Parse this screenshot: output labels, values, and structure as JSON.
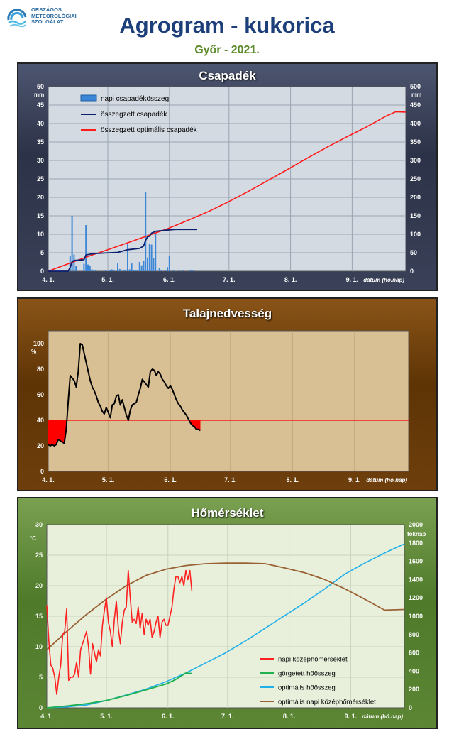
{
  "logo": {
    "line1": "ORSZÁGOS",
    "line2": "METEOROLÓGIAI",
    "line3": "SZOLGÁLAT"
  },
  "title": "Agrogram - kukorica",
  "subtitle": "Győr - 2021.",
  "colors": {
    "precip_bar": "#3b86d6",
    "cum_precip": "#0a1f6e",
    "opt_precip": "#ff1a1a",
    "soil_line": "#000000",
    "soil_threshold": "#ff0000",
    "temp_daily": "#ff2020",
    "rolling_heat": "#20b050",
    "opt_heat": "#22b0e8",
    "opt_temp": "#9a6234"
  },
  "chart_data": [
    {
      "type": "bar+line",
      "title": "Csapadék",
      "ylabel_left": "mm",
      "ylabel_right": "mm",
      "xlabel": "dátum (hó.nap)",
      "x_ticks": [
        "4. 1.",
        "5. 1.",
        "6. 1.",
        "7. 1.",
        "8. 1.",
        "9. 1."
      ],
      "x_tick_days": [
        0,
        30,
        61,
        91,
        122,
        153
      ],
      "x_range": [
        0,
        180
      ],
      "ylim_left": [
        0,
        50
      ],
      "yticks_left": [
        0,
        5,
        10,
        15,
        20,
        25,
        30,
        35,
        40,
        45,
        50
      ],
      "ylim_right": [
        0,
        500
      ],
      "yticks_right": [
        0,
        50,
        100,
        150,
        200,
        250,
        300,
        350,
        400,
        450,
        500
      ],
      "legend": [
        "napi csapadékösszeg",
        "összegzett csapadék",
        "összegzett optimális  csapadék"
      ],
      "daily_precip": {
        "day": [
          11,
          12,
          13,
          14,
          18,
          19,
          20,
          21,
          22,
          23,
          24,
          29,
          31,
          32,
          33,
          35,
          36,
          38,
          39,
          40,
          41,
          42,
          43,
          44,
          45,
          46,
          47,
          48,
          49,
          50,
          51,
          52,
          53,
          54,
          56,
          57,
          59,
          60,
          61,
          63,
          66,
          68,
          71,
          72,
          73
        ],
        "value": [
          4.2,
          15,
          4.5,
          1.5,
          2,
          12.5,
          1.8,
          1.5,
          0.5,
          0.4,
          0.3,
          0.3,
          0.3,
          0.5,
          0.2,
          2.1,
          0.6,
          0.4,
          0.4,
          7.8,
          0.5,
          2.1,
          0.3,
          0.3,
          0.3,
          2.5,
          1.6,
          2.8,
          21.5,
          3.7,
          7.5,
          7.2,
          3.5,
          10.5,
          0.8,
          0.3,
          0.3,
          1.1,
          4.2,
          0.3,
          0.2,
          0.3,
          0.3,
          0.4,
          0.2
        ]
      },
      "cum_precip": {
        "day": [
          0,
          10,
          11,
          12,
          13,
          18,
          19,
          22,
          24,
          35,
          40,
          43,
          46,
          48,
          49,
          50,
          51,
          52,
          54,
          61,
          64,
          75
        ],
        "value": [
          0,
          0,
          10,
          25,
          29,
          31,
          44,
          47,
          48,
          51,
          58,
          60,
          62,
          68,
          83,
          93,
          95,
          103,
          108,
          112,
          113,
          113
        ]
      },
      "opt_precip": {
        "day": [
          0,
          5,
          10,
          20,
          30,
          40,
          50,
          60,
          70,
          80,
          90,
          100,
          110,
          120,
          130,
          140,
          150,
          160,
          165,
          170,
          175,
          180
        ],
        "value": [
          0,
          10,
          20,
          40,
          58,
          77,
          96,
          115,
          137,
          160,
          186,
          214,
          244,
          274,
          305,
          335,
          363,
          390,
          405,
          420,
          432,
          431
        ]
      }
    },
    {
      "type": "line",
      "title": "Talajnedvesség",
      "ylabel": "%",
      "xlabel": "dátum (hó.nap)",
      "x_ticks": [
        "4. 1.",
        "5. 1.",
        "6. 1.",
        "7. 1.",
        "8. 1.",
        "9. 1."
      ],
      "x_tick_days": [
        0,
        30,
        61,
        91,
        122,
        153
      ],
      "x_range": [
        0,
        180
      ],
      "ylim": [
        0,
        110
      ],
      "yticks": [
        0,
        20,
        40,
        60,
        80,
        100
      ],
      "threshold": 40,
      "series": {
        "day": [
          0,
          1,
          2,
          3,
          4,
          5,
          6,
          7,
          8,
          9,
          10,
          11,
          12,
          13,
          14,
          15,
          16,
          17,
          18,
          19,
          20,
          21,
          22,
          23,
          24,
          25,
          26,
          27,
          28,
          29,
          30,
          31,
          32,
          33,
          34,
          35,
          36,
          37,
          38,
          39,
          40,
          41,
          42,
          43,
          44,
          45,
          46,
          47,
          48,
          49,
          50,
          51,
          52,
          53,
          54,
          55,
          56,
          57,
          58,
          59,
          60,
          61,
          62,
          63,
          64,
          65,
          66,
          67,
          68,
          69,
          70,
          71,
          72,
          73,
          74,
          75,
          76
        ],
        "value": [
          21,
          20,
          21,
          20,
          21,
          25,
          24,
          23,
          22,
          33,
          55,
          75,
          73,
          71,
          66,
          78,
          100,
          99,
          92,
          85,
          78,
          71,
          66,
          63,
          59,
          54,
          51,
          47,
          45,
          50,
          46,
          42,
          52,
          53,
          59,
          60,
          52,
          56,
          50,
          44,
          40,
          48,
          52,
          53,
          54,
          60,
          65,
          72,
          70,
          68,
          66,
          78,
          80,
          79,
          75,
          78,
          76,
          72,
          70,
          67,
          65,
          67,
          64,
          60,
          56,
          53,
          51,
          48,
          46,
          44,
          41,
          38,
          36,
          35,
          33,
          33,
          32
        ]
      }
    },
    {
      "type": "line",
      "title": "Hőmérséklet",
      "ylabel_left": "°C",
      "ylabel_right": "foknap",
      "xlabel": "dátum (hó.nap)",
      "x_ticks": [
        "4. 1.",
        "5. 1.",
        "6. 1.",
        "7. 1.",
        "8. 1.",
        "9. 1."
      ],
      "x_tick_days": [
        0,
        30,
        61,
        91,
        122,
        153
      ],
      "x_range": [
        0,
        180
      ],
      "ylim_left": [
        0,
        30
      ],
      "yticks_left": [
        0,
        5,
        10,
        15,
        20,
        25,
        30
      ],
      "ylim_right": [
        0,
        2000
      ],
      "yticks_right": [
        0,
        200,
        400,
        600,
        800,
        1000,
        1200,
        1400,
        1600,
        1800,
        2000
      ],
      "legend": [
        "napi középhőmérséklet",
        "görgetett hőösszeg",
        "optimális hőösszeg",
        "optimális napi középhőmérséklet"
      ],
      "daily_temp": {
        "day": [
          0,
          1,
          2,
          3,
          4,
          5,
          6,
          7,
          8,
          9,
          10,
          11,
          12,
          13,
          14,
          15,
          16,
          17,
          18,
          19,
          20,
          21,
          22,
          23,
          24,
          25,
          26,
          27,
          28,
          29,
          30,
          31,
          32,
          33,
          34,
          35,
          36,
          37,
          38,
          39,
          40,
          41,
          42,
          43,
          44,
          45,
          46,
          47,
          48,
          49,
          50,
          51,
          52,
          53,
          54,
          55,
          56,
          57,
          58,
          59,
          60,
          61,
          62,
          63,
          64,
          65,
          66,
          67,
          68,
          69,
          70,
          71,
          72,
          73
        ],
        "value": [
          16.8,
          11,
          7,
          6.5,
          5,
          2.2,
          5,
          7,
          12,
          12.5,
          16.2,
          4.5,
          5,
          5,
          5.5,
          7.5,
          5,
          9.5,
          10.5,
          11.5,
          12.5,
          10,
          5.5,
          10.5,
          9,
          7.5,
          9.5,
          8.5,
          13.5,
          16,
          18,
          14,
          12.5,
          10,
          14.5,
          17.5,
          13,
          10.5,
          14,
          16,
          16.5,
          22.5,
          18,
          14,
          14.5,
          13.8,
          16.5,
          13,
          15.5,
          12,
          14.5,
          13.5,
          14.5,
          11.5,
          12.5,
          14,
          15,
          11.5,
          14,
          14.5,
          13.5,
          13.5,
          15,
          16.5,
          19.5,
          21.5,
          21.5,
          20.5,
          21.5,
          20,
          22.5,
          21,
          22.5,
          19.2
        ]
      },
      "rolling_heat": {
        "day": [
          0,
          10,
          20,
          30,
          40,
          50,
          60,
          65,
          70,
          73
        ],
        "value": [
          0,
          20,
          45,
          80,
          135,
          195,
          260,
          310,
          380,
          375
        ]
      },
      "opt_heat": {
        "day": [
          0,
          10,
          20,
          30,
          40,
          50,
          60,
          70,
          80,
          90,
          100,
          110,
          120,
          130,
          140,
          150,
          160,
          170,
          175,
          180
        ],
        "value": [
          0,
          10,
          30,
          80,
          140,
          205,
          285,
          380,
          490,
          600,
          730,
          870,
          1010,
          1150,
          1300,
          1460,
          1580,
          1690,
          1740,
          1790
        ]
      },
      "opt_temp": {
        "day": [
          0,
          10,
          20,
          30,
          40,
          50,
          60,
          70,
          80,
          90,
          100,
          110,
          120,
          130,
          140,
          150,
          160,
          170,
          180
        ],
        "value": [
          9.5,
          12.5,
          15.3,
          17.8,
          20,
          21.7,
          22.7,
          23.3,
          23.6,
          23.7,
          23.7,
          23.6,
          22.9,
          22.1,
          21,
          19.5,
          17.8,
          16,
          16.1
        ]
      }
    }
  ]
}
